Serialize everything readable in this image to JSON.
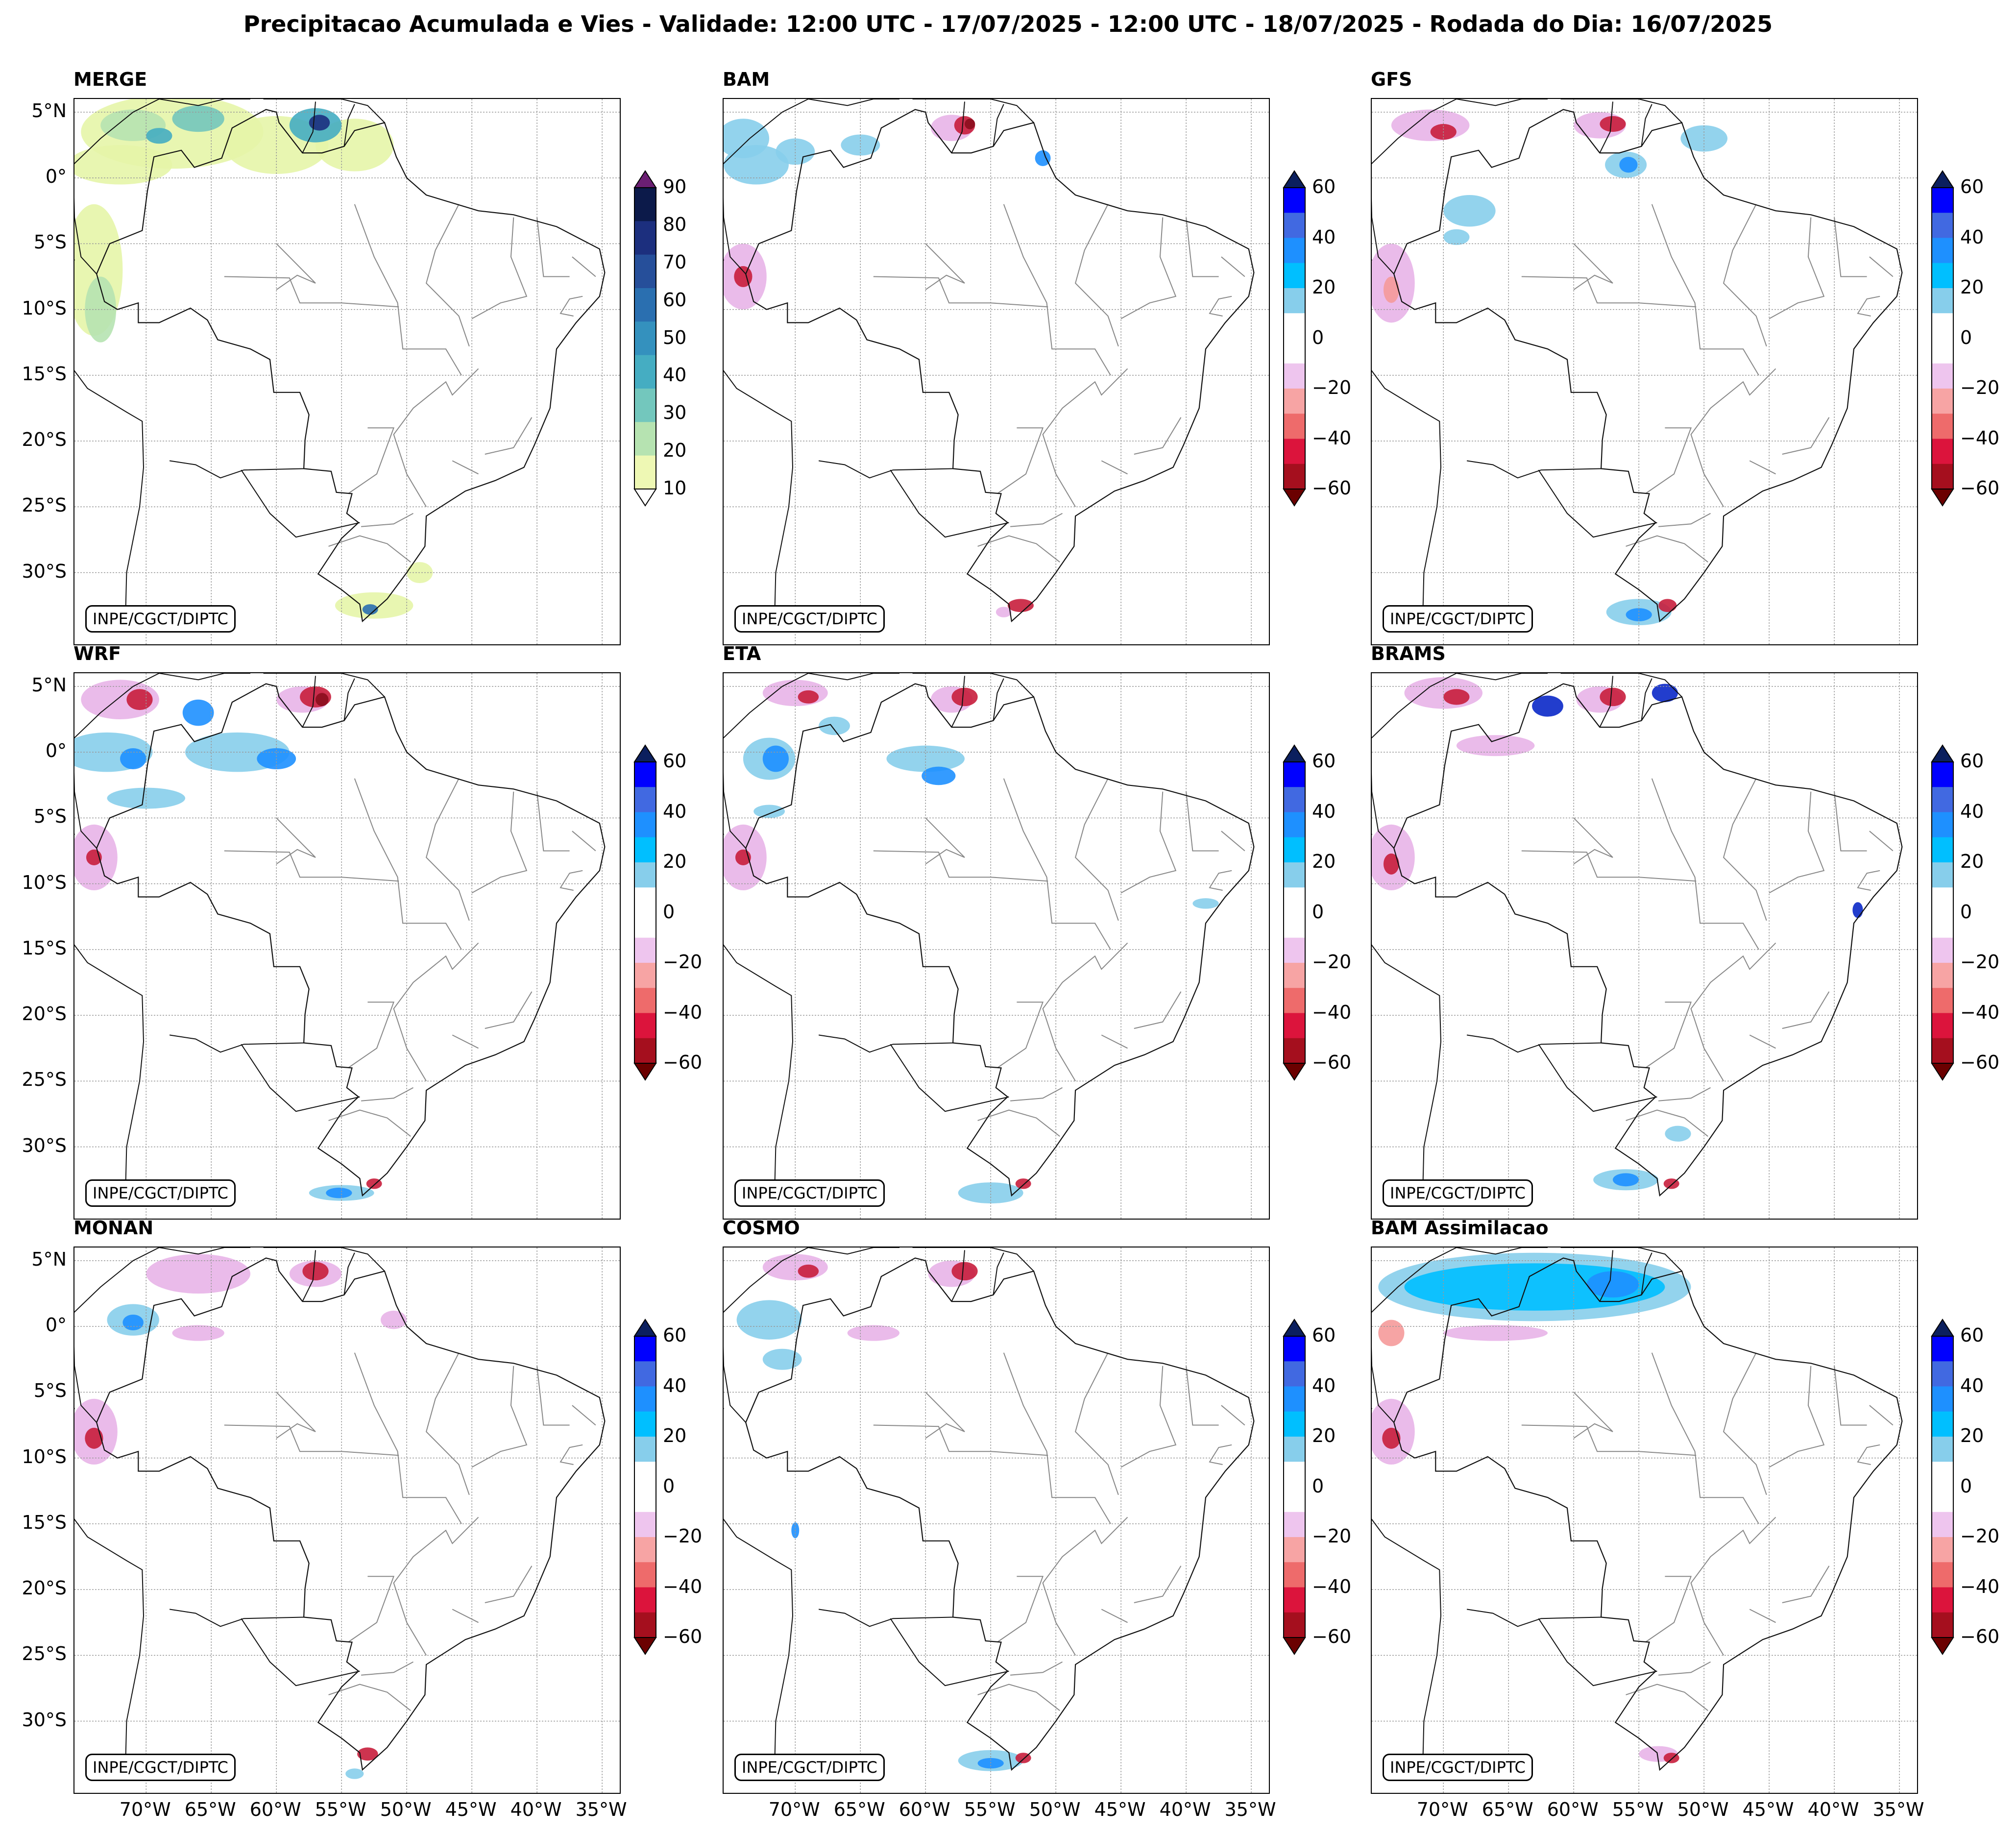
{
  "title": "Precipitacao Acumulada e Vies - Validade: 12:00 UTC - 17/07/2025 - 12:00 UTC - 18/07/2025 - Rodada do Dia: 16/07/2025",
  "credit": "INPE/CGCT/DIPTC",
  "lat_labels": [
    "5°N",
    "0°",
    "5°S",
    "10°S",
    "15°S",
    "20°S",
    "25°S",
    "30°S"
  ],
  "lon_labels": [
    "70°W",
    "65°W",
    "60°W",
    "55°W",
    "50°W",
    "45°W",
    "40°W",
    "35°W"
  ],
  "panels": [
    {
      "name": "MERGE",
      "scale": "precip"
    },
    {
      "name": "BAM",
      "scale": "bias"
    },
    {
      "name": "GFS",
      "scale": "bias"
    },
    {
      "name": "WRF",
      "scale": "bias"
    },
    {
      "name": "ETA",
      "scale": "bias"
    },
    {
      "name": "BRAMS",
      "scale": "bias"
    },
    {
      "name": "MONAN",
      "scale": "bias"
    },
    {
      "name": "COSMO",
      "scale": "bias"
    },
    {
      "name": "BAM Assimilacao",
      "scale": "bias"
    }
  ],
  "colorbars": {
    "precip": {
      "ticks": [
        "90",
        "80",
        "70",
        "60",
        "50",
        "40",
        "30",
        "20",
        "10"
      ],
      "colors": [
        "#0c1a4a",
        "#1c2f7e",
        "#264f9a",
        "#2a6fb0",
        "#3491be",
        "#45adc2",
        "#73c7bd",
        "#b6e3b1",
        "#eef8b4"
      ],
      "extend_top": "#6b1f73"
    },
    "bias": {
      "ticks": [
        "60",
        "40",
        "20",
        "0",
        "−20",
        "−40",
        "−60"
      ],
      "colors": [
        "#0000ff",
        "#4169e1",
        "#1e90ff",
        "#00bfff",
        "#87ceeb",
        "#ffffff",
        "#ffffff",
        "#eec5ee",
        "#f7a4a4",
        "#ee6b6b",
        "#dc143c",
        "#a50f1e"
      ],
      "extend_top": "#0b1f5e",
      "extend_bottom": "#6b0000"
    }
  },
  "colors": {
    "red_bias": "#c81e3c",
    "blue_bias": "#1e90ff",
    "pink_bias": "#e8b4e8"
  }
}
